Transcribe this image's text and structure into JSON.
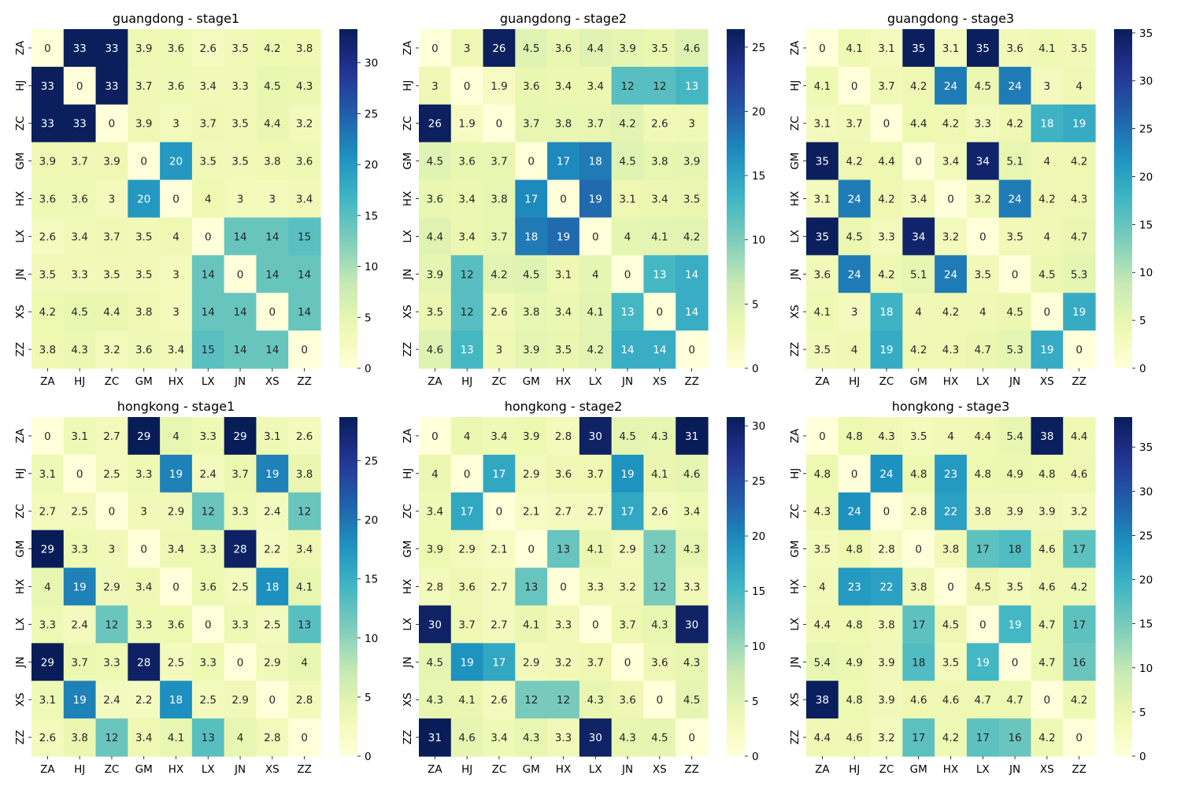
{
  "figure": {
    "colormap": "YlGnBu",
    "colormap_stops": [
      "#ffffd9",
      "#edf8b1",
      "#c7e9b4",
      "#7fcdbb",
      "#41b6c4",
      "#1d91c0",
      "#225ea8",
      "#253494",
      "#081d58"
    ]
  },
  "chart_data": [
    {
      "type": "heatmap",
      "title": "guangdong - stage1",
      "x_categories": [
        "ZA",
        "HJ",
        "ZC",
        "GM",
        "HX",
        "LX",
        "JN",
        "XS",
        "ZZ"
      ],
      "y_categories": [
        "ZA",
        "HJ",
        "ZC",
        "GM",
        "HX",
        "LX",
        "JN",
        "XS",
        "ZZ"
      ],
      "values": [
        [
          0,
          33,
          33,
          3.9,
          3.6,
          2.6,
          3.5,
          4.2,
          3.8
        ],
        [
          33,
          0,
          33,
          3.7,
          3.6,
          3.4,
          3.3,
          4.5,
          4.3
        ],
        [
          33,
          33,
          0,
          3.9,
          3,
          3.7,
          3.5,
          4.4,
          3.2
        ],
        [
          3.9,
          3.7,
          3.9,
          0,
          20,
          3.5,
          3.5,
          3.8,
          3.6
        ],
        [
          3.6,
          3.6,
          3,
          20,
          0,
          4,
          3,
          3,
          3.4
        ],
        [
          2.6,
          3.4,
          3.7,
          3.5,
          4,
          0,
          14,
          14,
          15
        ],
        [
          3.5,
          3.3,
          3.5,
          3.5,
          3,
          14,
          0,
          14,
          14
        ],
        [
          4.2,
          4.5,
          4.4,
          3.8,
          3,
          14,
          14,
          0,
          14
        ],
        [
          3.8,
          4.3,
          3.2,
          3.6,
          3.4,
          15,
          14,
          14,
          0
        ]
      ],
      "vmin": 0,
      "vmax": 33.3,
      "colorbar_ticks": [
        0,
        5,
        10,
        15,
        20,
        25,
        30
      ]
    },
    {
      "type": "heatmap",
      "title": "guangdong - stage2",
      "x_categories": [
        "ZA",
        "HJ",
        "ZC",
        "GM",
        "HX",
        "LX",
        "JN",
        "XS",
        "ZZ"
      ],
      "y_categories": [
        "ZA",
        "HJ",
        "ZC",
        "GM",
        "HX",
        "LX",
        "JN",
        "XS",
        "ZZ"
      ],
      "values": [
        [
          0,
          3,
          26,
          4.5,
          3.6,
          4.4,
          3.9,
          3.5,
          4.6
        ],
        [
          3,
          0,
          1.9,
          3.6,
          3.4,
          3.4,
          12,
          12,
          13
        ],
        [
          26,
          1.9,
          0,
          3.7,
          3.8,
          3.7,
          4.2,
          2.6,
          3
        ],
        [
          4.5,
          3.6,
          3.7,
          0,
          17,
          18,
          4.5,
          3.8,
          3.9
        ],
        [
          3.6,
          3.4,
          3.8,
          17,
          0,
          19,
          3.1,
          3.4,
          3.5
        ],
        [
          4.4,
          3.4,
          3.7,
          18,
          19,
          0,
          4,
          4.1,
          4.2
        ],
        [
          3.9,
          12,
          4.2,
          4.5,
          3.1,
          4,
          0,
          13,
          14
        ],
        [
          3.5,
          12,
          2.6,
          3.8,
          3.4,
          4.1,
          13,
          0,
          14
        ],
        [
          4.6,
          13,
          3,
          3.9,
          3.5,
          4.2,
          14,
          14,
          0
        ]
      ],
      "vmin": 0,
      "vmax": 26.4,
      "colorbar_ticks": [
        0,
        5,
        10,
        15,
        20,
        25
      ]
    },
    {
      "type": "heatmap",
      "title": "guangdong - stage3",
      "x_categories": [
        "ZA",
        "HJ",
        "ZC",
        "GM",
        "HX",
        "LX",
        "JN",
        "XS",
        "ZZ"
      ],
      "y_categories": [
        "ZA",
        "HJ",
        "ZC",
        "GM",
        "HX",
        "LX",
        "JN",
        "XS",
        "ZZ"
      ],
      "values": [
        [
          0,
          4.1,
          3.1,
          35,
          3.1,
          35,
          3.6,
          4.1,
          3.5
        ],
        [
          4.1,
          0,
          3.7,
          4.2,
          24,
          4.5,
          24,
          3,
          4
        ],
        [
          3.1,
          3.7,
          0,
          4.4,
          4.2,
          3.3,
          4.2,
          18,
          19
        ],
        [
          35,
          4.2,
          4.4,
          0,
          3.4,
          34,
          5.1,
          4,
          4.2
        ],
        [
          3.1,
          24,
          4.2,
          3.4,
          0,
          3.2,
          24,
          4.2,
          4.3
        ],
        [
          35,
          4.5,
          3.3,
          34,
          3.2,
          0,
          3.5,
          4,
          4.7
        ],
        [
          3.6,
          24,
          4.2,
          5.1,
          24,
          3.5,
          0,
          4.5,
          5.3
        ],
        [
          4.1,
          3,
          18,
          4,
          4.2,
          4,
          4.5,
          0,
          19
        ],
        [
          3.5,
          4,
          19,
          4.2,
          4.3,
          4.7,
          5.3,
          19,
          0
        ]
      ],
      "vmin": 0,
      "vmax": 35.4,
      "colorbar_ticks": [
        0,
        5,
        10,
        15,
        20,
        25,
        30,
        35
      ]
    },
    {
      "type": "heatmap",
      "title": "hongkong - stage1",
      "x_categories": [
        "ZA",
        "HJ",
        "ZC",
        "GM",
        "HX",
        "LX",
        "JN",
        "XS",
        "ZZ"
      ],
      "y_categories": [
        "ZA",
        "HJ",
        "ZC",
        "GM",
        "HX",
        "LX",
        "JN",
        "XS",
        "ZZ"
      ],
      "values": [
        [
          0,
          3.1,
          2.7,
          29,
          4,
          3.3,
          29,
          3.1,
          2.6
        ],
        [
          3.1,
          0,
          2.5,
          3.3,
          19,
          2.4,
          3.7,
          19,
          3.8
        ],
        [
          2.7,
          2.5,
          0,
          3,
          2.9,
          12,
          3.3,
          2.4,
          12
        ],
        [
          29,
          3.3,
          3,
          0,
          3.4,
          3.3,
          28,
          2.2,
          3.4
        ],
        [
          4,
          19,
          2.9,
          3.4,
          0,
          3.6,
          2.5,
          18,
          4.1
        ],
        [
          3.3,
          2.4,
          12,
          3.3,
          3.6,
          0,
          3.3,
          2.5,
          13
        ],
        [
          29,
          3.7,
          3.3,
          28,
          2.5,
          3.3,
          0,
          2.9,
          4
        ],
        [
          3.1,
          19,
          2.4,
          2.2,
          18,
          2.5,
          2.9,
          0,
          2.8
        ],
        [
          2.6,
          3.8,
          12,
          3.4,
          4.1,
          13,
          4,
          2.8,
          0
        ]
      ],
      "vmin": 0,
      "vmax": 28.7,
      "colorbar_ticks": [
        0,
        5,
        10,
        15,
        20,
        25
      ]
    },
    {
      "type": "heatmap",
      "title": "hongkong - stage2",
      "x_categories": [
        "ZA",
        "HJ",
        "ZC",
        "GM",
        "HX",
        "LX",
        "JN",
        "XS",
        "ZZ"
      ],
      "y_categories": [
        "ZA",
        "HJ",
        "ZC",
        "GM",
        "HX",
        "LX",
        "JN",
        "XS",
        "ZZ"
      ],
      "values": [
        [
          0,
          4,
          3.4,
          3.9,
          2.8,
          30,
          4.5,
          4.3,
          31
        ],
        [
          4,
          0,
          17,
          2.9,
          3.6,
          3.7,
          19,
          4.1,
          4.6
        ],
        [
          3.4,
          17,
          0,
          2.1,
          2.7,
          2.7,
          17,
          2.6,
          3.4
        ],
        [
          3.9,
          2.9,
          2.1,
          0,
          13,
          4.1,
          2.9,
          12,
          4.3
        ],
        [
          2.8,
          3.6,
          2.7,
          13,
          0,
          3.3,
          3.2,
          12,
          3.3
        ],
        [
          30,
          3.7,
          2.7,
          4.1,
          3.3,
          0,
          3.7,
          4.3,
          30
        ],
        [
          4.5,
          19,
          17,
          2.9,
          3.2,
          3.7,
          0,
          3.6,
          4.3
        ],
        [
          4.3,
          4.1,
          2.6,
          12,
          12,
          4.3,
          3.6,
          0,
          4.5
        ],
        [
          31,
          4.6,
          3.4,
          4.3,
          3.3,
          30,
          4.3,
          4.5,
          0
        ]
      ],
      "vmin": 0,
      "vmax": 30.8,
      "colorbar_ticks": [
        0,
        5,
        10,
        15,
        20,
        25,
        30
      ]
    },
    {
      "type": "heatmap",
      "title": "hongkong - stage3",
      "x_categories": [
        "ZA",
        "HJ",
        "ZC",
        "GM",
        "HX",
        "LX",
        "JN",
        "XS",
        "ZZ"
      ],
      "y_categories": [
        "ZA",
        "HJ",
        "ZC",
        "GM",
        "HX",
        "LX",
        "JN",
        "XS",
        "ZZ"
      ],
      "values": [
        [
          0,
          4.8,
          4.3,
          3.5,
          4,
          4.4,
          5.4,
          38,
          4.4
        ],
        [
          4.8,
          0,
          24,
          4.8,
          23,
          4.8,
          4.9,
          4.8,
          4.6
        ],
        [
          4.3,
          24,
          0,
          2.8,
          22,
          3.8,
          3.9,
          3.9,
          3.2
        ],
        [
          3.5,
          4.8,
          2.8,
          0,
          3.8,
          17,
          18,
          4.6,
          17
        ],
        [
          4,
          23,
          22,
          3.8,
          0,
          4.5,
          3.5,
          4.6,
          4.2
        ],
        [
          4.4,
          4.8,
          3.8,
          17,
          4.5,
          0,
          19,
          4.7,
          17
        ],
        [
          5.4,
          4.9,
          3.9,
          18,
          3.5,
          19,
          0,
          4.7,
          16
        ],
        [
          38,
          4.8,
          3.9,
          4.6,
          4.6,
          4.7,
          4.7,
          0,
          4.2
        ],
        [
          4.4,
          4.6,
          3.2,
          17,
          4.2,
          17,
          16,
          4.2,
          0
        ]
      ],
      "vmin": 0,
      "vmax": 38.4,
      "colorbar_ticks": [
        0,
        5,
        10,
        15,
        20,
        25,
        30,
        35
      ]
    }
  ]
}
